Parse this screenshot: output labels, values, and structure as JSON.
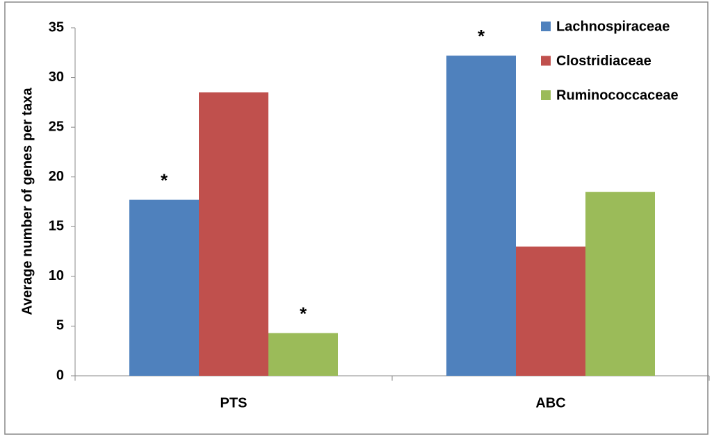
{
  "chart_data": {
    "type": "bar",
    "y_label": "Average number of genes per taxa",
    "categories": [
      "PTS",
      "ABC"
    ],
    "series": [
      {
        "name": "Lachnospiraceae",
        "color": "#4f81bd",
        "values": [
          17.7,
          32.2
        ],
        "annotations": [
          "*",
          "*"
        ]
      },
      {
        "name": "Clostridiaceae",
        "color": "#c0504d",
        "values": [
          28.5,
          13.0
        ]
      },
      {
        "name": "Ruminococcaceae",
        "color": "#9bbb59",
        "values": [
          4.3,
          18.5
        ],
        "annotations": [
          "*",
          null
        ]
      }
    ],
    "ylim": [
      0,
      35
    ],
    "yticks": [
      0,
      5,
      10,
      15,
      20,
      25,
      30,
      35
    ],
    "grid": false,
    "legend": "top-right"
  }
}
